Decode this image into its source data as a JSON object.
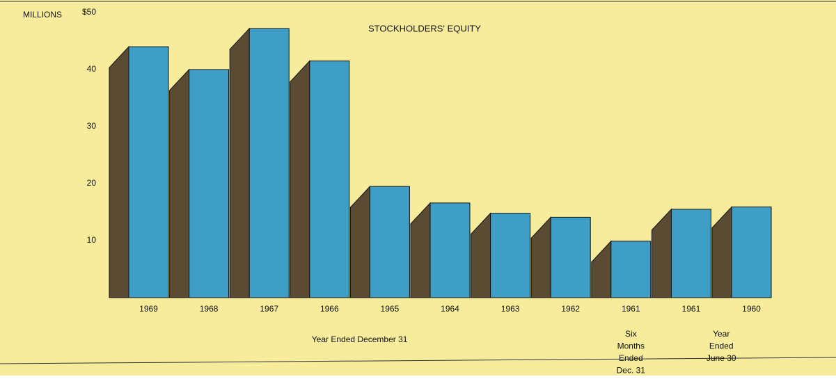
{
  "chart_data": {
    "type": "bar3d",
    "title": "STOCKHOLDERS' EQUITY",
    "y_axis_label": "MILLIONS",
    "categories": [
      "1969",
      "1968",
      "1967",
      "1966",
      "1965",
      "1964",
      "1963",
      "1962",
      "1961",
      "1961",
      "1960"
    ],
    "values": [
      44,
      40,
      47.2,
      41.5,
      19.5,
      16.6,
      14.8,
      14.1,
      9.9,
      15.5,
      15.9
    ],
    "color": "#3f9ec6",
    "side_color": "#5b4b32",
    "background": "#f6ec9c",
    "ylim": [
      0,
      50
    ],
    "yticks": [
      10,
      20,
      30,
      40,
      {
        "value": 50,
        "label": "$50"
      }
    ],
    "groups": [
      {
        "lines": [
          "Year Ended December 31"
        ],
        "from": 0,
        "to": 7
      },
      {
        "lines": [
          "Six",
          "Months",
          "Ended",
          "Dec. 31"
        ],
        "from": 8,
        "to": 8
      },
      {
        "lines": [
          "Year",
          "Ended",
          "June 30"
        ],
        "from": 9,
        "to": 10
      }
    ]
  }
}
